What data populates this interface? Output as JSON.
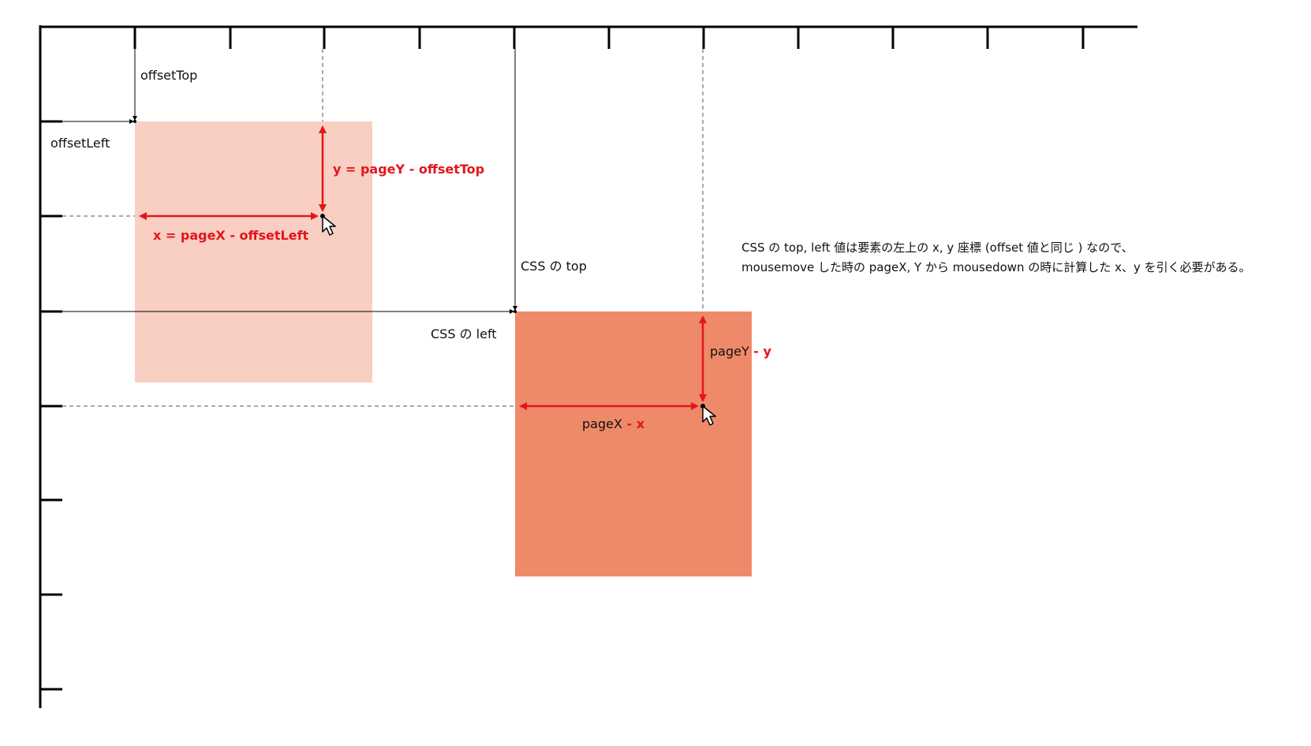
{
  "labels": {
    "offset_top": "offsetTop",
    "offset_left": "offsetLeft",
    "y_formula": "y = pageY - offsetTop",
    "x_formula": "x = pageX - offsetLeft",
    "css_top": "CSS の top",
    "css_left": "CSS の left",
    "page_y": "pageY",
    "minus_y": " - y",
    "page_x": "pageX",
    "minus_x": " - x"
  },
  "note": {
    "line1": "CSS の top, left 値は要素の左上の x, y 座標 (offset 値と同じ ) なので、",
    "line2": "mousemove した時の pageX, Y から mousedown の時に計算した x、y を引く必要がある。"
  },
  "colors": {
    "original_box": "#f8cfc2",
    "moved_box": "#ee8a69",
    "accent": "#e2161c",
    "axis": "#000000"
  },
  "icons": [
    "mouse-cursor-icon",
    "mouse-cursor-icon"
  ]
}
